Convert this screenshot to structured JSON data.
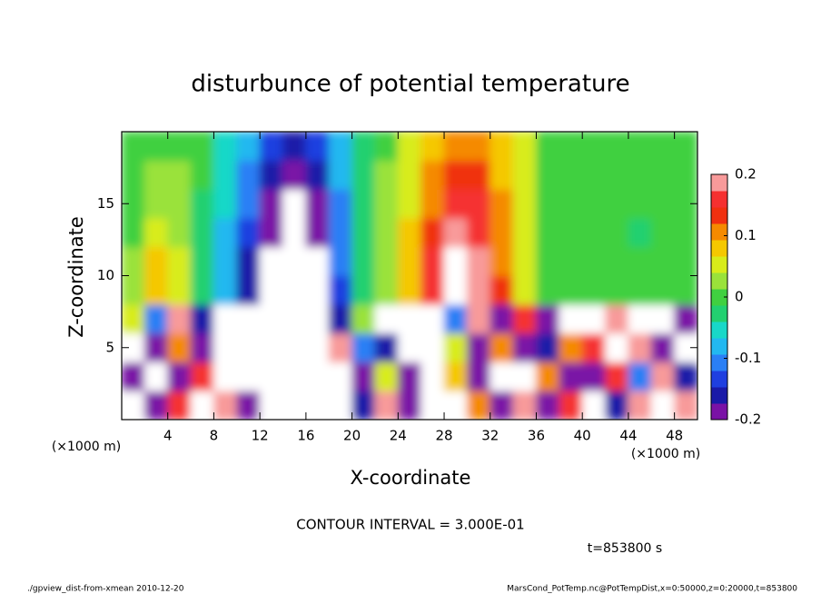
{
  "chart_data": {
    "type": "heatmap",
    "title": "disturbunce of potential temperature",
    "xlabel": "X-coordinate",
    "ylabel": "Z-coordinate",
    "xunit": "(×1000 m)",
    "yunit": "(×1000 m)",
    "contour_interval": "CONTOUR INTERVAL = 3.000E-01",
    "time": "t=853800 s",
    "footer_left": "./gpview_dist-from-xmean  2010-12-20",
    "footer_right": "MarsCond_PotTemp.nc@PotTempDist,x=0:50000,z=0:20000,t=853800",
    "xlim": [
      0,
      50
    ],
    "ylim": [
      0,
      20
    ],
    "xticks": [
      4,
      8,
      12,
      16,
      20,
      24,
      28,
      32,
      36,
      40,
      44,
      48
    ],
    "yticks": [
      5,
      10,
      15
    ],
    "x": [
      1,
      3,
      5,
      7,
      9,
      11,
      13,
      15,
      17,
      19,
      21,
      23,
      25,
      27,
      29,
      31,
      33,
      35,
      37,
      39,
      41,
      43,
      45,
      47,
      49
    ],
    "y": [
      1,
      3,
      5,
      7,
      9,
      11,
      13,
      15,
      17,
      19
    ],
    "z": [
      [
        0.22,
        -0.2,
        0.15,
        -0.25,
        0.18,
        -0.2,
        0.3,
        0.26,
        -0.28,
        0.22,
        -0.15,
        0.18,
        -0.2,
        0.25,
        -0.22,
        0.1,
        -0.18,
        0.2,
        -0.2,
        0.15,
        0.22,
        -0.15,
        0.2,
        -0.22,
        0.18
      ],
      [
        -0.2,
        0.26,
        -0.18,
        0.15,
        -0.22,
        0.3,
        0.28,
        -0.26,
        0.3,
        0.25,
        -0.18,
        0.05,
        -0.2,
        -0.22,
        0.08,
        -0.2,
        0.22,
        -0.25,
        0.12,
        -0.18,
        -0.2,
        0.15,
        -0.12,
        0.2,
        -0.15
      ],
      [
        0.25,
        -0.18,
        0.1,
        -0.2,
        0.3,
        0.22,
        0.26,
        -0.3,
        0.28,
        0.2,
        -0.12,
        -0.15,
        0.27,
        0.25,
        0.05,
        -0.18,
        0.12,
        -0.2,
        -0.15,
        0.1,
        0.15,
        -0.22,
        0.2,
        -0.18,
        0.24
      ],
      [
        0.05,
        -0.12,
        0.2,
        -0.15,
        0.25,
        -0.22,
        0.3,
        -0.28,
        0.25,
        -0.15,
        0.02,
        -0.25,
        0.28,
        0.3,
        -0.1,
        0.18,
        -0.2,
        0.15,
        -0.18,
        0.22,
        -0.25,
        0.2,
        -0.22,
        0.25,
        -0.2
      ],
      [
        0.02,
        0.08,
        0.04,
        -0.03,
        -0.09,
        -0.16,
        -0.22,
        -0.27,
        -0.24,
        -0.13,
        -0.02,
        0.03,
        0.09,
        0.17,
        0.22,
        0.19,
        0.13,
        0.05,
        0.01,
        0,
        -0.01,
        0,
        -0.01,
        0,
        0
      ],
      [
        0.02,
        0.08,
        0.04,
        -0.02,
        -0.08,
        -0.15,
        -0.21,
        -0.26,
        -0.23,
        -0.12,
        -0.02,
        0.03,
        0.08,
        0.16,
        0.21,
        0.19,
        0.12,
        0.05,
        0.01,
        -0.01,
        -0.01,
        -0.01,
        -0.01,
        0,
        0
      ],
      [
        0.01,
        0.06,
        0.03,
        -0.02,
        -0.07,
        -0.14,
        -0.2,
        -0.24,
        -0.2,
        -0.11,
        -0.02,
        0.02,
        0.07,
        0.14,
        0.18,
        0.17,
        0.11,
        0.04,
        0.01,
        -0.01,
        -0.01,
        -0.01,
        -0.02,
        0,
        0
      ],
      [
        0,
        0.03,
        0.02,
        -0.02,
        -0.06,
        -0.12,
        -0.18,
        -0.21,
        -0.18,
        -0.1,
        -0.02,
        0.02,
        0.06,
        0.12,
        0.16,
        0.15,
        0.1,
        0.04,
        0.01,
        0,
        -0.01,
        -0.01,
        -0.01,
        0,
        0
      ],
      [
        0,
        0.02,
        0.02,
        -0.01,
        -0.05,
        -0.11,
        -0.16,
        -0.18,
        -0.15,
        -0.09,
        -0.02,
        0.02,
        0.05,
        0.1,
        0.13,
        0.13,
        0.09,
        0.04,
        0.01,
        0,
        0,
        0,
        -0.01,
        0,
        0
      ],
      [
        0,
        0.01,
        0.01,
        -0.01,
        -0.04,
        -0.09,
        -0.13,
        -0.15,
        -0.13,
        -0.08,
        -0.02,
        0.01,
        0.04,
        0.08,
        0.11,
        0.11,
        0.08,
        0.04,
        0.01,
        0,
        0,
        -0.01,
        -0.01,
        -0.01,
        0
      ]
    ],
    "clim": [
      -0.2,
      0.2
    ],
    "cticks": [
      -0.2,
      -0.1,
      0,
      0.1,
      0.2
    ],
    "colors": [
      "#7a12a6",
      "#1a1aa8",
      "#1f3fe0",
      "#2a7ff5",
      "#22b8f0",
      "#18d8c8",
      "#22d070",
      "#40d040",
      "#9ae23a",
      "#d8ec1a",
      "#f5c800",
      "#f58a00",
      "#f03010",
      "#f53030",
      "#f89a9a"
    ],
    "out_of_range_color": "#ffffff"
  }
}
